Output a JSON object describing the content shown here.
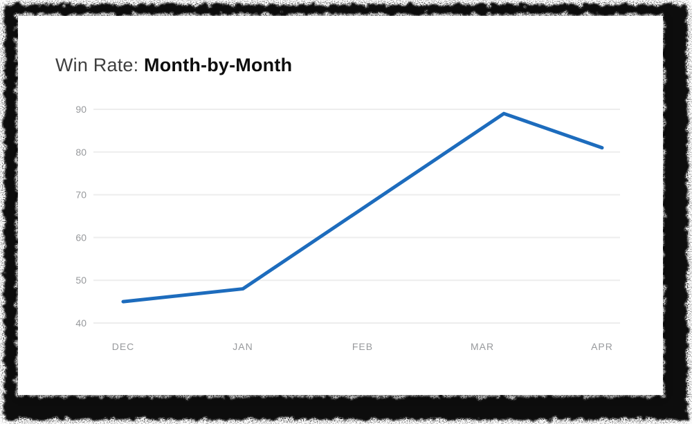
{
  "title": {
    "prefix": "Win Rate: ",
    "emphasis": "Month-by-Month"
  },
  "colors": {
    "accent_line": "#1d6cbd",
    "gridline": "#ededed",
    "axis_label": "#97999c",
    "title_prefix": "#3f3f3f",
    "title_emphasis": "#0e0e0e",
    "card_background": "#ffffff",
    "frame": "#0b0b0b"
  },
  "chart_data": {
    "type": "line",
    "title": "Win Rate: Month-by-Month",
    "categories": [
      "DEC",
      "JAN",
      "FEB",
      "MAR",
      "APR"
    ],
    "y_ticks": [
      90,
      80,
      70,
      60,
      50,
      40
    ],
    "ylim": [
      40,
      90
    ],
    "grid": "horizontal-only",
    "legend": "none",
    "markers": false,
    "series": [
      {
        "name": "Win Rate",
        "color": "#1d6cbd",
        "points": [
          {
            "month": "DEC",
            "month_index": 0,
            "value": 45
          },
          {
            "month": "JAN",
            "month_index": 1,
            "value": 48
          },
          {
            "month": "MAR",
            "month_index": 3.18,
            "value": 89
          },
          {
            "month": "APR",
            "month_index": 4,
            "value": 81
          }
        ],
        "note": "Straight segments, no point markers; FEB has no vertex (line passes ~67 there); the 89 peak bend sits just right of the MAR label."
      }
    ]
  }
}
